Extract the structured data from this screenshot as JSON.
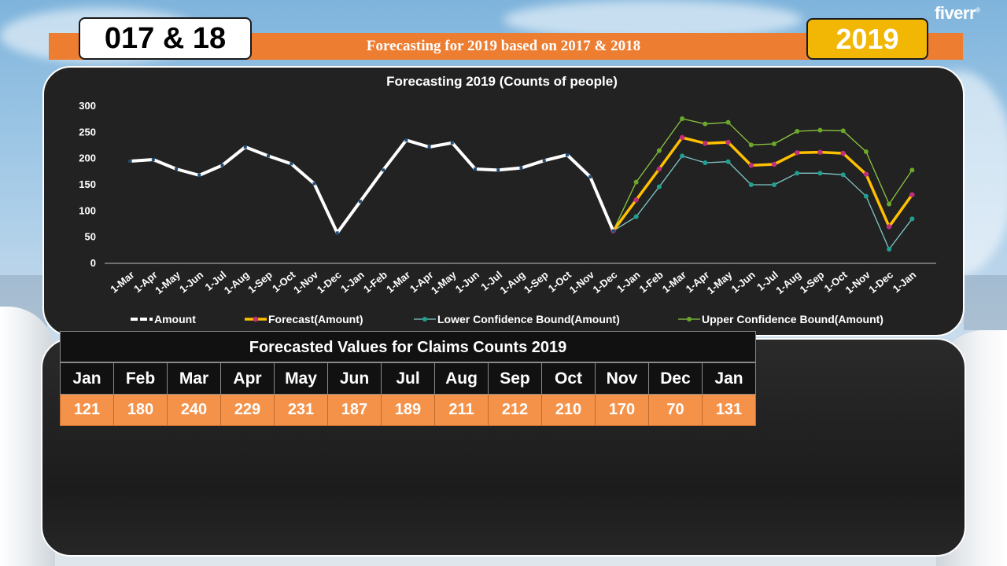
{
  "header": {
    "badge_left": "017 & 18",
    "banner_title": "Forecasting for 2019 based on 2017 &  2018",
    "badge_right": "2019",
    "logo_text": "fiverr",
    "logo_mark": "®"
  },
  "colors": {
    "accent": "#ed7d31",
    "badge_yellow": "#f2b705",
    "amount": "#ffffff",
    "forecast": "#ffc000",
    "forecast_marker": "#c0307a",
    "lower": "#80c8c8",
    "lower_marker": "#20a090",
    "upper": "#8cc63f",
    "upper_marker": "#6aa82a"
  },
  "chart_data": {
    "type": "line",
    "title": "Forecasting 2019 (Counts of people)",
    "xlabel": "",
    "ylabel": "",
    "ylim": [
      0,
      300
    ],
    "yticks": [
      0,
      50,
      100,
      150,
      200,
      250,
      300
    ],
    "grid": false,
    "legend": "bottom",
    "categories": [
      "1-Mar",
      "1-Apr",
      "1-May",
      "1-Jun",
      "1-Jul",
      "1-Aug",
      "1-Sep",
      "1-Oct",
      "1-Nov",
      "1-Dec",
      "1-Jan",
      "1-Feb",
      "1-Mar",
      "1-Apr",
      "1-May",
      "1-Jun",
      "1-Jul",
      "1-Aug",
      "1-Sep",
      "1-Oct",
      "1-Nov",
      "1-Dec",
      "1-Jan",
      "1-Feb",
      "1-Mar",
      "1-Apr",
      "1-May",
      "1-Jun",
      "1-Jul",
      "1-Aug",
      "1-Sep",
      "1-Oct",
      "1-Nov",
      "1-Dec",
      "1-Jan"
    ],
    "series": [
      {
        "name": "Amount",
        "values": [
          195,
          198,
          180,
          168,
          187,
          222,
          205,
          190,
          152,
          58,
          118,
          178,
          235,
          222,
          230,
          180,
          178,
          182,
          196,
          207,
          165,
          62,
          null,
          null,
          null,
          null,
          null,
          null,
          null,
          null,
          null,
          null,
          null,
          null,
          null
        ]
      },
      {
        "name": "Forecast(Amount)",
        "values": [
          null,
          null,
          null,
          null,
          null,
          null,
          null,
          null,
          null,
          null,
          null,
          null,
          null,
          null,
          null,
          null,
          null,
          null,
          null,
          null,
          null,
          62,
          121,
          180,
          240,
          229,
          231,
          187,
          189,
          211,
          212,
          210,
          170,
          70,
          131
        ]
      },
      {
        "name": "Lower Confidence Bound(Amount)",
        "values": [
          null,
          null,
          null,
          null,
          null,
          null,
          null,
          null,
          null,
          null,
          null,
          null,
          null,
          null,
          null,
          null,
          null,
          null,
          null,
          null,
          null,
          62,
          89,
          146,
          205,
          192,
          194,
          150,
          150,
          172,
          172,
          169,
          128,
          27,
          85
        ]
      },
      {
        "name": "Upper Confidence Bound(Amount)",
        "values": [
          null,
          null,
          null,
          null,
          null,
          null,
          null,
          null,
          null,
          null,
          null,
          null,
          null,
          null,
          null,
          null,
          null,
          null,
          null,
          null,
          null,
          62,
          155,
          215,
          276,
          266,
          269,
          226,
          228,
          252,
          254,
          253,
          213,
          113,
          178
        ]
      }
    ]
  },
  "forecast_table": {
    "title": "Forecasted Values for Claims Counts 2019",
    "months": [
      "Jan",
      "Feb",
      "Mar",
      "Apr",
      "May",
      "Jun",
      "Jul",
      "Aug",
      "Sep",
      "Oct",
      "Nov",
      "Dec",
      "Jan"
    ],
    "values": [
      "121",
      "180",
      "240",
      "229",
      "231",
      "187",
      "189",
      "211",
      "212",
      "210",
      "170",
      "70",
      "131"
    ]
  }
}
